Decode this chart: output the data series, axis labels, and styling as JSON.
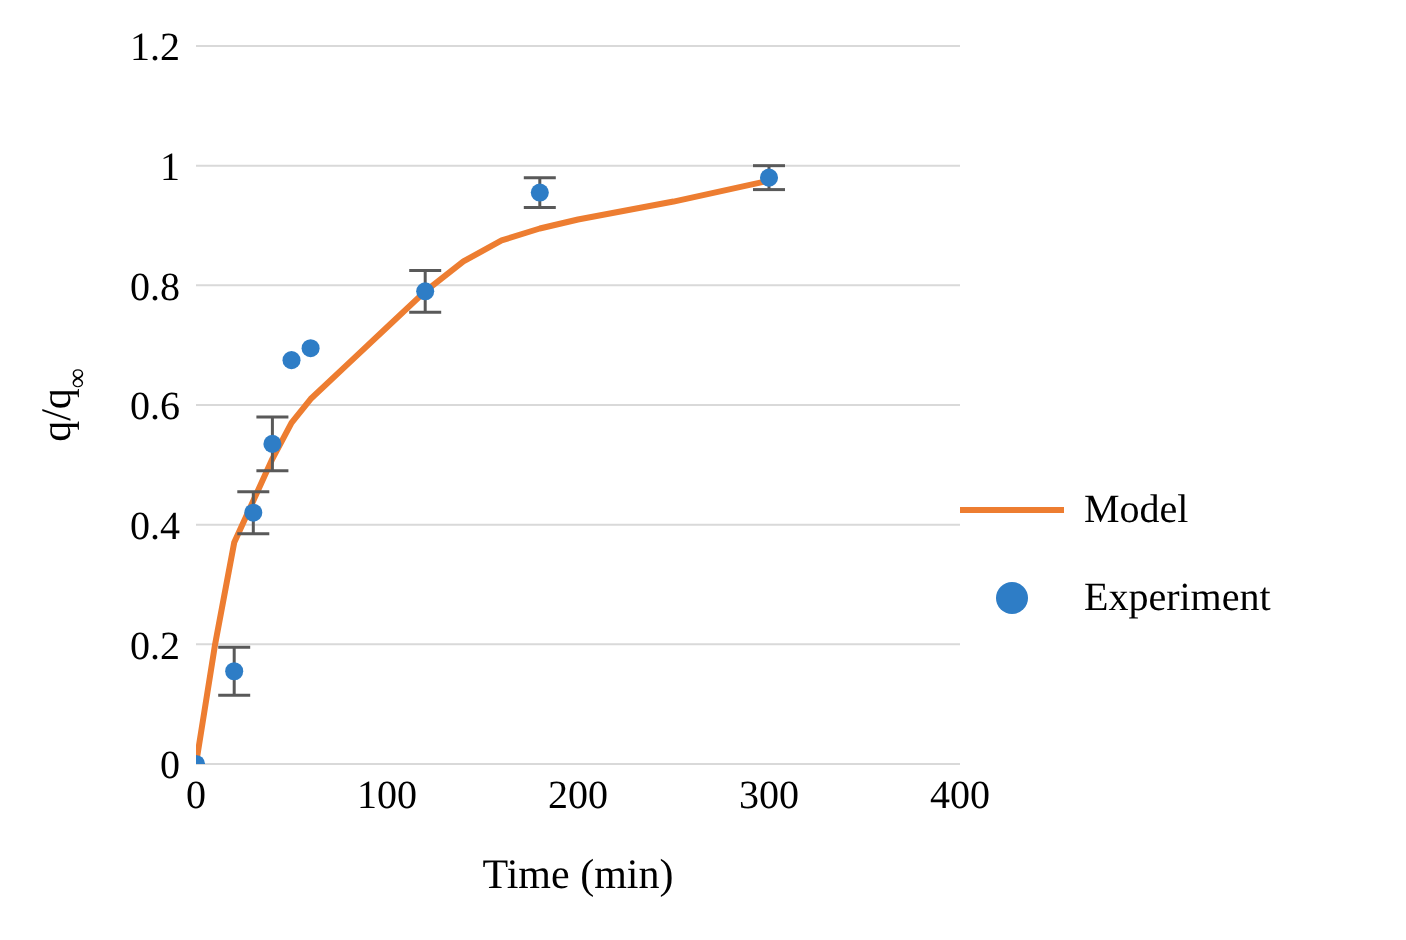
{
  "chart_data": {
    "type": "scatter",
    "xlabel": "Time (min)",
    "ylabel": "q/q$_{∞}$",
    "xlim": [
      0,
      400
    ],
    "xticks": [
      0,
      100,
      200,
      300,
      400
    ],
    "ylim": [
      0,
      1.2
    ],
    "yticks": [
      0,
      0.2,
      0.4,
      0.6,
      0.8,
      1,
      1.2
    ],
    "grid": "y",
    "legend": "right",
    "series": [
      {
        "name": "Model",
        "type": "line",
        "color": "#ed7d31",
        "marker": "none",
        "x": [
          0,
          10,
          20,
          30,
          40,
          50,
          60,
          80,
          100,
          120,
          140,
          160,
          180,
          200,
          250,
          300
        ],
        "values": [
          0,
          0.2,
          0.37,
          0.44,
          0.51,
          0.57,
          0.61,
          0.67,
          0.73,
          0.79,
          0.84,
          0.875,
          0.895,
          0.91,
          0.94,
          0.975
        ]
      },
      {
        "name": "Experiment",
        "color": "#2e7dc6",
        "marker": "circle",
        "x": [
          0,
          20,
          30,
          40,
          50,
          60,
          120,
          180,
          300
        ],
        "values": [
          0,
          0.155,
          0.42,
          0.535,
          0.675,
          0.695,
          0.79,
          0.955,
          0.98
        ],
        "errors": [
          null,
          0.04,
          0.035,
          0.045,
          null,
          null,
          0.035,
          0.025,
          0.02
        ]
      }
    ]
  }
}
